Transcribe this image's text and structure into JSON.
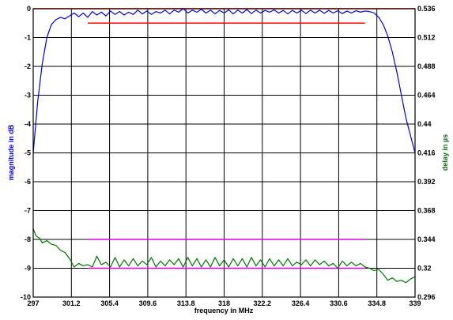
{
  "chart_data": {
    "type": "line",
    "xlabel": "frequency in MHz",
    "ylabel_left": "magnitude in dB",
    "ylabel_right": "delay in µs",
    "x_ticks": [
      "297",
      "301.2",
      "305.4",
      "309.6",
      "313.8",
      "318",
      "322.2",
      "326.4",
      "330.6",
      "334.8",
      "339"
    ],
    "y_left_ticks": [
      "0",
      "-1",
      "-2",
      "-3",
      "-4",
      "-5",
      "-6",
      "-7",
      "-8",
      "-9",
      "-10"
    ],
    "y_right_ticks": [
      "0.536",
      "0.512",
      "0.488",
      "0.464",
      "0.44",
      "0.416",
      "0.392",
      "0.368",
      "0.344",
      "0.32",
      "0.296"
    ],
    "xlim": [
      297,
      339
    ],
    "ylim_left": [
      -10,
      0
    ],
    "ylim_right": [
      0.296,
      0.536
    ],
    "grid": true,
    "series": [
      {
        "axis": "left",
        "color": "#0000dd",
        "points": [
          [
            297,
            -5.0
          ],
          [
            297.5,
            -3.2
          ],
          [
            298,
            -1.9
          ],
          [
            298.5,
            -1.0
          ],
          [
            299,
            -0.55
          ],
          [
            299.5,
            -0.38
          ],
          [
            300,
            -0.3
          ],
          [
            300.5,
            -0.35
          ],
          [
            301,
            -0.25
          ],
          [
            301.5,
            -0.15
          ],
          [
            302,
            -0.28
          ],
          [
            302.5,
            -0.15
          ],
          [
            303,
            -0.3
          ],
          [
            303.5,
            -0.1
          ],
          [
            304,
            -0.22
          ],
          [
            304.5,
            -0.12
          ],
          [
            305,
            -0.25
          ],
          [
            305.5,
            -0.08
          ],
          [
            306,
            -0.2
          ],
          [
            306.5,
            -0.1
          ],
          [
            307,
            -0.22
          ],
          [
            307.5,
            -0.12
          ],
          [
            308,
            -0.2
          ],
          [
            308.5,
            -0.05
          ],
          [
            309,
            -0.18
          ],
          [
            309.5,
            -0.08
          ],
          [
            310,
            -0.2
          ],
          [
            310.5,
            -0.1
          ],
          [
            311,
            -0.15
          ],
          [
            311.5,
            -0.05
          ],
          [
            312,
            -0.18
          ],
          [
            312.5,
            -0.05
          ],
          [
            313,
            -0.12
          ],
          [
            313.5,
            0.0
          ],
          [
            314,
            -0.15
          ],
          [
            314.5,
            -0.05
          ],
          [
            315,
            -0.12
          ],
          [
            315.5,
            -0.02
          ],
          [
            316,
            -0.15
          ],
          [
            316.5,
            -0.05
          ],
          [
            317,
            -0.18
          ],
          [
            317.5,
            -0.06
          ],
          [
            318,
            -0.15
          ],
          [
            318.5,
            -0.04
          ],
          [
            319,
            -0.18
          ],
          [
            319.5,
            -0.05
          ],
          [
            320,
            -0.15
          ],
          [
            320.5,
            -0.03
          ],
          [
            321,
            -0.17
          ],
          [
            321.5,
            -0.05
          ],
          [
            322,
            -0.15
          ],
          [
            322.5,
            -0.06
          ],
          [
            323,
            -0.12
          ],
          [
            323.5,
            -0.04
          ],
          [
            324,
            -0.15
          ],
          [
            324.5,
            -0.06
          ],
          [
            325,
            -0.18
          ],
          [
            325.5,
            -0.06
          ],
          [
            326,
            -0.15
          ],
          [
            326.5,
            -0.05
          ],
          [
            327,
            -0.17
          ],
          [
            327.5,
            -0.05
          ],
          [
            328,
            -0.15
          ],
          [
            328.5,
            -0.05
          ],
          [
            329,
            -0.16
          ],
          [
            329.5,
            -0.06
          ],
          [
            330,
            -0.15
          ],
          [
            330.5,
            -0.07
          ],
          [
            331,
            -0.17
          ],
          [
            331.5,
            -0.08
          ],
          [
            332,
            -0.15
          ],
          [
            332.5,
            -0.07
          ],
          [
            333,
            -0.12
          ],
          [
            333.5,
            -0.08
          ],
          [
            334,
            -0.1
          ],
          [
            334.5,
            -0.15
          ],
          [
            335,
            -0.3
          ],
          [
            335.5,
            -0.55
          ],
          [
            336,
            -0.95
          ],
          [
            336.5,
            -1.5
          ],
          [
            337,
            -2.2
          ],
          [
            337.5,
            -3.0
          ],
          [
            338,
            -3.8
          ],
          [
            338.5,
            -4.4
          ],
          [
            339,
            -5.0
          ]
        ]
      },
      {
        "axis": "right",
        "color": "#007700",
        "points": [
          [
            297,
            0.353
          ],
          [
            297.3,
            0.347
          ],
          [
            297.7,
            0.345
          ],
          [
            298,
            0.341
          ],
          [
            298.5,
            0.343
          ],
          [
            299,
            0.34
          ],
          [
            299.5,
            0.339
          ],
          [
            300,
            0.335
          ],
          [
            300.5,
            0.333
          ],
          [
            301,
            0.328
          ],
          [
            301.5,
            0.321
          ],
          [
            302,
            0.324
          ],
          [
            302.5,
            0.322
          ],
          [
            303,
            0.323
          ],
          [
            303.5,
            0.321
          ],
          [
            304,
            0.33
          ],
          [
            304.5,
            0.323
          ],
          [
            305,
            0.325
          ],
          [
            305.5,
            0.321
          ],
          [
            306,
            0.329
          ],
          [
            306.5,
            0.321
          ],
          [
            307,
            0.327
          ],
          [
            307.5,
            0.322
          ],
          [
            308,
            0.328
          ],
          [
            308.5,
            0.322
          ],
          [
            309,
            0.326
          ],
          [
            309.5,
            0.323
          ],
          [
            310,
            0.329
          ],
          [
            310.5,
            0.321
          ],
          [
            311,
            0.326
          ],
          [
            311.5,
            0.322
          ],
          [
            312,
            0.327
          ],
          [
            312.5,
            0.323
          ],
          [
            313,
            0.328
          ],
          [
            313.5,
            0.321
          ],
          [
            314,
            0.329
          ],
          [
            314.5,
            0.322
          ],
          [
            315,
            0.328
          ],
          [
            315.5,
            0.321
          ],
          [
            316,
            0.327
          ],
          [
            316.5,
            0.321
          ],
          [
            317,
            0.329
          ],
          [
            317.5,
            0.322
          ],
          [
            318,
            0.327
          ],
          [
            318.5,
            0.321
          ],
          [
            319,
            0.328
          ],
          [
            319.5,
            0.322
          ],
          [
            320,
            0.328
          ],
          [
            320.5,
            0.321
          ],
          [
            321,
            0.329
          ],
          [
            321.5,
            0.322
          ],
          [
            322,
            0.327
          ],
          [
            322.5,
            0.321
          ],
          [
            323,
            0.328
          ],
          [
            323.5,
            0.322
          ],
          [
            324,
            0.327
          ],
          [
            324.5,
            0.322
          ],
          [
            325,
            0.328
          ],
          [
            325.5,
            0.322
          ],
          [
            326,
            0.325
          ],
          [
            326.5,
            0.323
          ],
          [
            327,
            0.327
          ],
          [
            327.5,
            0.322
          ],
          [
            328,
            0.327
          ],
          [
            328.5,
            0.323
          ],
          [
            329,
            0.326
          ],
          [
            329.5,
            0.322
          ],
          [
            330,
            0.324
          ],
          [
            330.5,
            0.32
          ],
          [
            331,
            0.326
          ],
          [
            331.5,
            0.322
          ],
          [
            332,
            0.325
          ],
          [
            332.5,
            0.322
          ],
          [
            333,
            0.324
          ],
          [
            333.5,
            0.321
          ],
          [
            334,
            0.32
          ],
          [
            334.5,
            0.318
          ],
          [
            335,
            0.319
          ],
          [
            335.5,
            0.315
          ],
          [
            336,
            0.31
          ],
          [
            336.5,
            0.312
          ],
          [
            337,
            0.309
          ],
          [
            337.5,
            0.31
          ],
          [
            338,
            0.308
          ],
          [
            338.5,
            0.311
          ],
          [
            339,
            0.313
          ]
        ]
      }
    ],
    "reference_lines": [
      {
        "axis": "left",
        "color": "#ff0000",
        "x": [
          297,
          339
        ],
        "y": 0.0
      },
      {
        "axis": "left",
        "color": "#ff0000",
        "x": [
          303,
          333.5
        ],
        "y": -0.5
      },
      {
        "axis": "right",
        "color": "#dd00dd",
        "x": [
          303,
          333.5
        ],
        "y": 0.344
      },
      {
        "axis": "right",
        "color": "#dd00dd",
        "x": [
          303,
          333.5
        ],
        "y": 0.32
      }
    ],
    "colors": {
      "left_axis_label": "#0000dd",
      "right_axis_label": "#007700",
      "grid": "#000000"
    }
  }
}
